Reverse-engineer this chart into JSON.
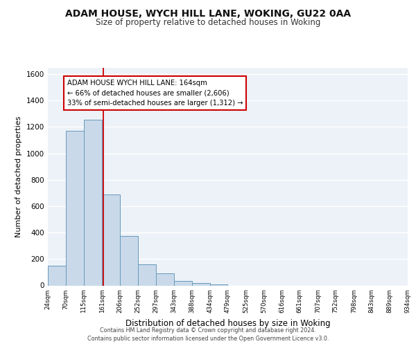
{
  "title": "ADAM HOUSE, WYCH HILL LANE, WOKING, GU22 0AA",
  "subtitle": "Size of property relative to detached houses in Woking",
  "xlabel": "Distribution of detached houses by size in Woking",
  "ylabel": "Number of detached properties",
  "bar_edges": [
    24,
    70,
    115,
    161,
    206,
    252,
    297,
    343,
    388,
    434,
    479,
    525,
    570,
    616,
    661,
    707,
    752,
    798,
    843,
    889,
    934
  ],
  "bar_heights": [
    150,
    1170,
    1255,
    690,
    375,
    160,
    90,
    35,
    20,
    10,
    0,
    0,
    0,
    0,
    0,
    0,
    0,
    0,
    0,
    0
  ],
  "tick_labels": [
    "24sqm",
    "70sqm",
    "115sqm",
    "161sqm",
    "206sqm",
    "252sqm",
    "297sqm",
    "343sqm",
    "388sqm",
    "434sqm",
    "479sqm",
    "525sqm",
    "570sqm",
    "616sqm",
    "661sqm",
    "707sqm",
    "752sqm",
    "798sqm",
    "843sqm",
    "889sqm",
    "934sqm"
  ],
  "bar_color": "#c9d9ea",
  "bar_edge_color": "#6699bb",
  "bg_color": "#edf2f8",
  "grid_color": "#ffffff",
  "red_line_x": 164,
  "annotation_text": "ADAM HOUSE WYCH HILL LANE: 164sqm\n← 66% of detached houses are smaller (2,606)\n33% of semi-detached houses are larger (1,312) →",
  "annotation_box_color": "#ffffff",
  "annotation_box_edge_color": "#cc0000",
  "ylim": [
    0,
    1650
  ],
  "yticks": [
    0,
    200,
    400,
    600,
    800,
    1000,
    1200,
    1400,
    1600
  ],
  "footer_line1": "Contains HM Land Registry data © Crown copyright and database right 2024.",
  "footer_line2": "Contains public sector information licensed under the Open Government Licence v3.0."
}
